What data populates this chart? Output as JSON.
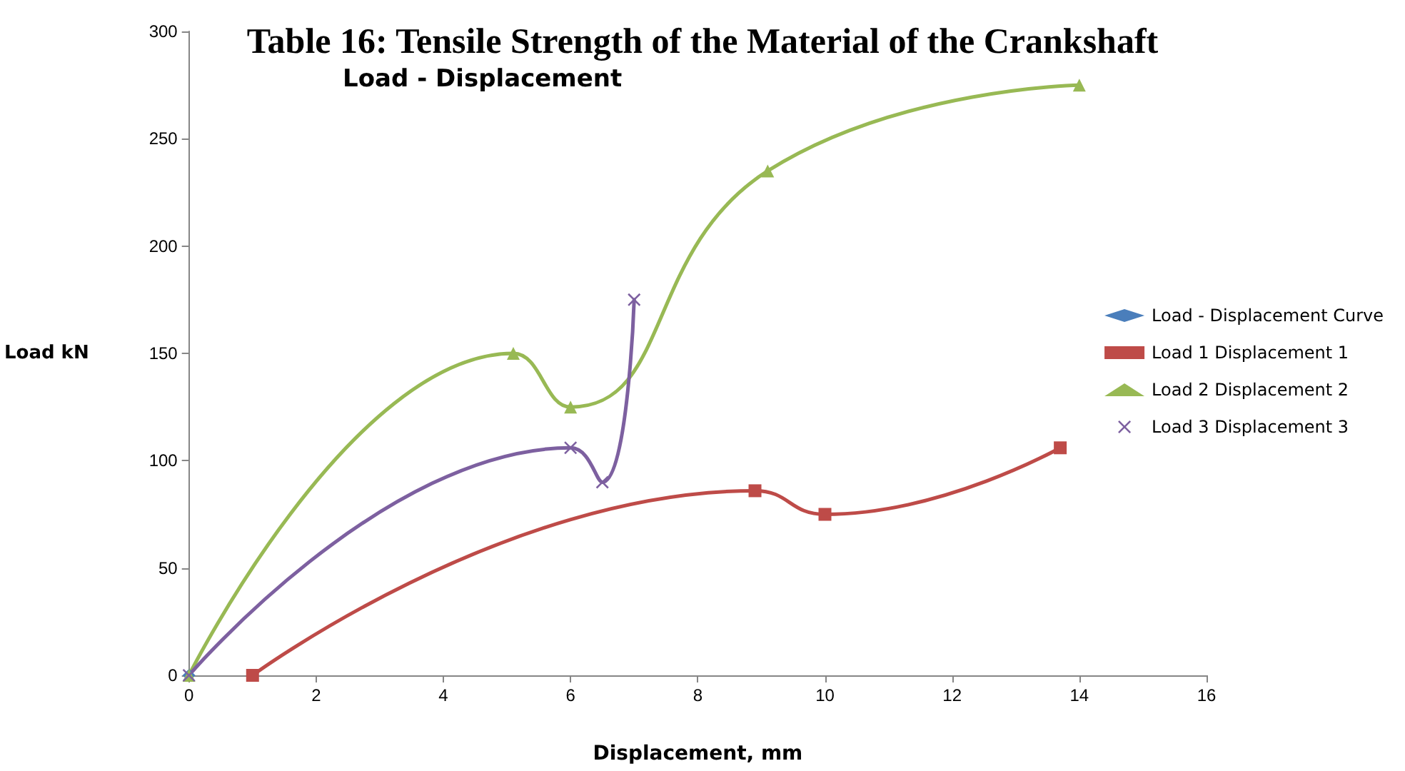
{
  "chart_data": {
    "type": "line",
    "title": "Table 16: Tensile Strength of the Material of the Crankshaft",
    "subtitle": "Load - Displacement",
    "xlabel": "Displacement, mm",
    "ylabel": "Load kN",
    "series": [
      {
        "name": "Load - Displacement Curve",
        "color": "#4a7ebb",
        "marker": "diamond",
        "x": [
          0
        ],
        "values": [
          0
        ]
      },
      {
        "name": "Load 1 Displacement 1",
        "color": "#be4b48",
        "marker": "square",
        "x": [
          1,
          8.9,
          10,
          13.7
        ],
        "values": [
          0,
          86,
          75,
          106
        ]
      },
      {
        "name": "Load 2 Displacement 2",
        "color": "#98b954",
        "marker": "triangle",
        "x": [
          0,
          5.1,
          6,
          9.1,
          14
        ],
        "values": [
          0,
          150,
          125,
          235,
          275
        ]
      },
      {
        "name": "Load 3 Displacement 3",
        "color": "#7d60a0",
        "marker": "cross",
        "x": [
          0,
          6,
          6.5,
          7
        ],
        "values": [
          0,
          106,
          90,
          175
        ]
      }
    ],
    "xlim": [
      0,
      16
    ],
    "xticks": [
      0,
      2,
      4,
      6,
      8,
      10,
      12,
      14,
      16
    ],
    "ylim": [
      0,
      300
    ],
    "yticks": [
      0,
      50,
      100,
      150,
      200,
      250,
      300
    ],
    "grid": false,
    "legend": "right",
    "line_style": "solid"
  }
}
